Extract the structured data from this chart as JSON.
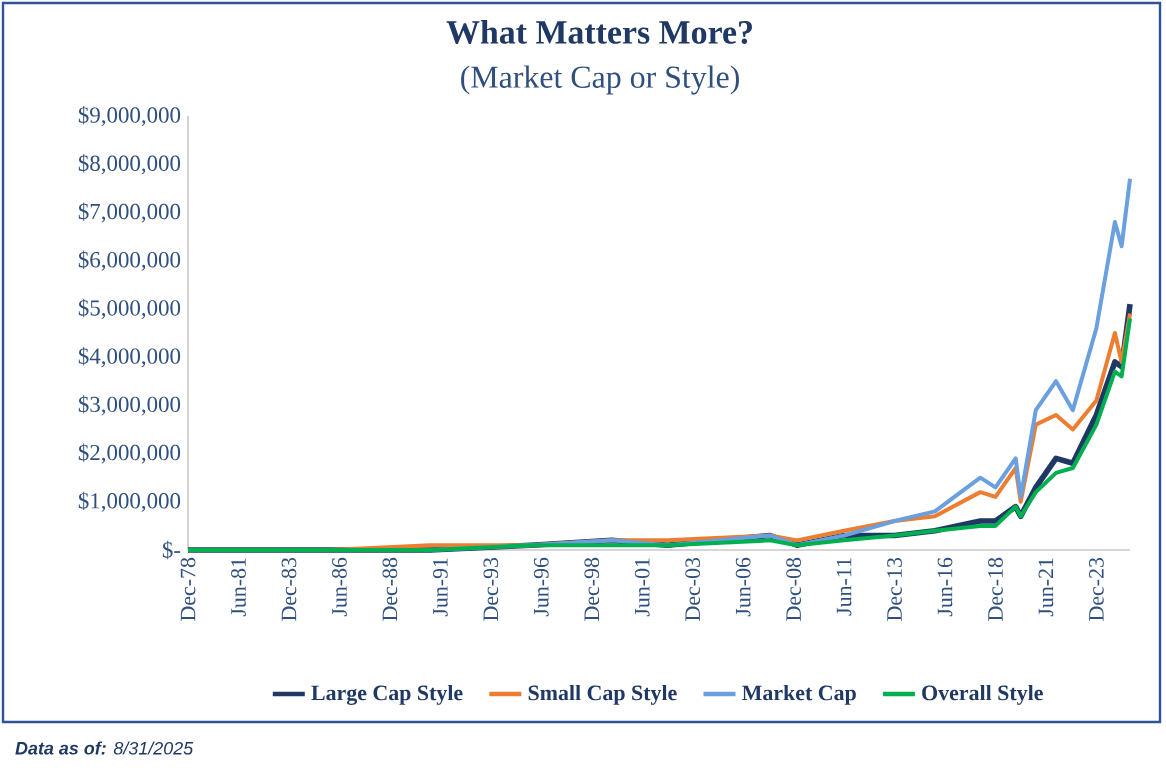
{
  "chart_data": {
    "type": "line",
    "title": "What Matters More?",
    "subtitle": "(Market Cap or Style)",
    "annotations": [
      "**Data as of:** 8/31/2025"
    ],
    "x": [
      "1978-12",
      "1985-12",
      "1990-12",
      "1995-12",
      "1999-12",
      "2002-09",
      "2007-10",
      "2009-02",
      "2011-06",
      "2013-12",
      "2015-12",
      "2018-03",
      "2018-12",
      "2019-12",
      "2020-03",
      "2020-12",
      "2021-12",
      "2022-10",
      "2023-12",
      "2024-11",
      "2025-03",
      "2025-08"
    ],
    "series": [
      {
        "name": "Large Cap Style",
        "color": "#1f3864",
        "values": [
          0,
          0,
          0,
          100000,
          200000,
          100000,
          300000,
          100000,
          300000,
          300000,
          400000,
          600000,
          600000,
          900000,
          700000,
          1300000,
          1900000,
          1800000,
          2800000,
          3900000,
          3800000,
          5100000
        ]
      },
      {
        "name": "Small Cap Style",
        "color": "#ed7d31",
        "values": [
          0,
          0,
          100000,
          100000,
          200000,
          200000,
          300000,
          200000,
          400000,
          600000,
          700000,
          1200000,
          1100000,
          1700000,
          1000000,
          2600000,
          2800000,
          2500000,
          3100000,
          4500000,
          3900000,
          4900000
        ]
      },
      {
        "name": "Market Cap",
        "color": "#6a9fe0",
        "values": [
          0,
          0,
          0,
          100000,
          200000,
          100000,
          300000,
          100000,
          300000,
          600000,
          800000,
          1500000,
          1300000,
          1900000,
          1100000,
          2900000,
          3500000,
          2900000,
          4600000,
          6800000,
          6300000,
          7700000
        ]
      },
      {
        "name": "Overall Style",
        "color": "#00b050",
        "values": [
          0,
          0,
          0,
          100000,
          100000,
          100000,
          200000,
          100000,
          200000,
          300000,
          400000,
          500000,
          500000,
          900000,
          700000,
          1200000,
          1600000,
          1700000,
          2600000,
          3700000,
          3600000,
          4800000
        ]
      }
    ],
    "xlim": [
      "1978-12",
      "2025-08"
    ],
    "xticks": [
      {
        "value": "1978-12",
        "label": "Dec-78"
      },
      {
        "value": "1981-06",
        "label": "Jun-81"
      },
      {
        "value": "1983-12",
        "label": "Dec-83"
      },
      {
        "value": "1986-06",
        "label": "Jun-86"
      },
      {
        "value": "1988-12",
        "label": "Dec-88"
      },
      {
        "value": "1991-06",
        "label": "Jun-91"
      },
      {
        "value": "1993-12",
        "label": "Dec-93"
      },
      {
        "value": "1996-06",
        "label": "Jun-96"
      },
      {
        "value": "1998-12",
        "label": "Dec-98"
      },
      {
        "value": "2001-06",
        "label": "Jun-01"
      },
      {
        "value": "2003-12",
        "label": "Dec-03"
      },
      {
        "value": "2006-06",
        "label": "Jun-06"
      },
      {
        "value": "2008-12",
        "label": "Dec-08"
      },
      {
        "value": "2011-06",
        "label": "Jun-11"
      },
      {
        "value": "2013-12",
        "label": "Dec-13"
      },
      {
        "value": "2016-06",
        "label": "Jun-16"
      },
      {
        "value": "2018-12",
        "label": "Dec-18"
      },
      {
        "value": "2021-06",
        "label": "Jun-21"
      },
      {
        "value": "2023-12",
        "label": "Dec-23"
      }
    ],
    "ylim": [
      0,
      9000000
    ],
    "yticks": [
      {
        "value": 0,
        "label": "$-"
      },
      {
        "value": 1000000,
        "label": "$1,000,000"
      },
      {
        "value": 2000000,
        "label": "$2,000,000"
      },
      {
        "value": 3000000,
        "label": "$3,000,000"
      },
      {
        "value": 4000000,
        "label": "$4,000,000"
      },
      {
        "value": 5000000,
        "label": "$5,000,000"
      },
      {
        "value": 6000000,
        "label": "$6,000,000"
      },
      {
        "value": 7000000,
        "label": "$7,000,000"
      },
      {
        "value": 8000000,
        "label": "$8,000,000"
      },
      {
        "value": 9000000,
        "label": "$9,000,000"
      }
    ],
    "legend": "bottom",
    "marker": "none",
    "line_style": "solid"
  }
}
